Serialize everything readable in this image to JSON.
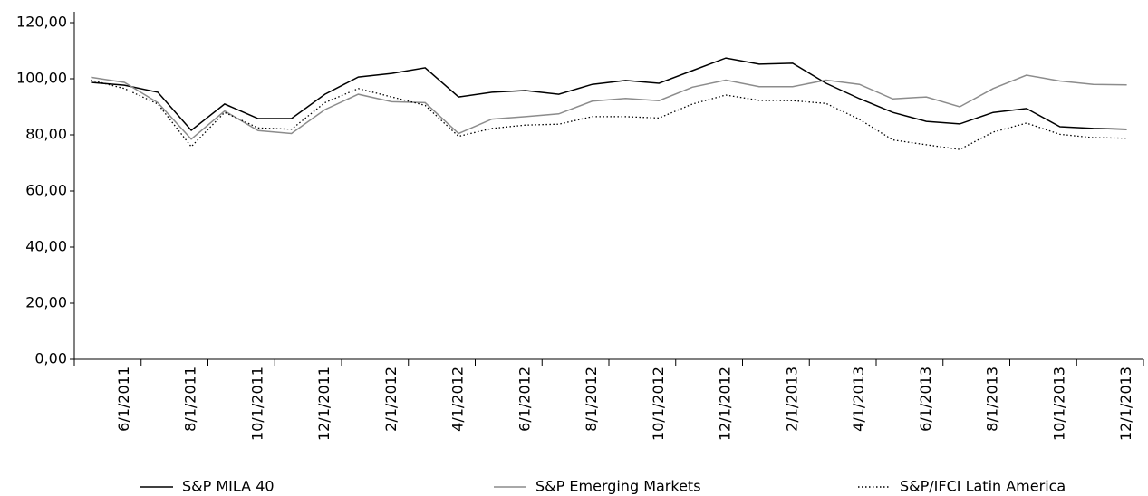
{
  "chart_data": {
    "type": "line",
    "categories": [
      null,
      "6/1/2011",
      null,
      "8/1/2011",
      null,
      "10/1/2011",
      null,
      "12/1/2011",
      null,
      "2/1/2012",
      null,
      "4/1/2012",
      null,
      "6/1/2012",
      null,
      "8/1/2012",
      null,
      "10/1/2012",
      null,
      "12/1/2012",
      null,
      "2/1/2013",
      null,
      "4/1/2013",
      null,
      "6/1/2013",
      null,
      "8/1/2013",
      null,
      "10/1/2013",
      null,
      "12/1/2013"
    ],
    "series": [
      {
        "name": "S&P MILA 40",
        "color": "#000000",
        "dash": "solid",
        "values": [
          98.7,
          97.7,
          95.2,
          81.6,
          91,
          85.8,
          85.8,
          94.5,
          100.6,
          101.9,
          103.9,
          93.5,
          95.2,
          95.8,
          94.5,
          98,
          99.4,
          98.4,
          102.9,
          107.4,
          105.2,
          105.5,
          98.4,
          92.9,
          88,
          84.8,
          83.9,
          88,
          89.4,
          82.9,
          82.3,
          82
        ]
      },
      {
        "name": "S&P Emerging Markets",
        "color": "#8c8c8c",
        "dash": "solid",
        "values": [
          100.5,
          98.7,
          91.5,
          78.5,
          88.5,
          81.5,
          80.5,
          89,
          94.5,
          91.8,
          91.5,
          80.5,
          85.6,
          86.5,
          87.5,
          92,
          93,
          92.2,
          97,
          99.5,
          97.2,
          97.2,
          99.5,
          98,
          92.8,
          93.5,
          90,
          96.5,
          101.3,
          99.2,
          98,
          97.8
        ]
      },
      {
        "name": "S&P/IFCI Latin America",
        "color": "#000000",
        "dash": "dotted",
        "values": [
          99.5,
          96.5,
          91,
          75.8,
          88,
          82.5,
          82,
          91.5,
          96.5,
          93.5,
          90.5,
          79.5,
          82.3,
          83.5,
          83.8,
          86.5,
          86.5,
          86,
          91,
          94.2,
          92.3,
          92.2,
          91.2,
          85.5,
          78.2,
          76.5,
          74.8,
          81,
          84.2,
          80.2,
          79,
          78.8
        ]
      }
    ],
    "ylim": [
      0,
      120
    ],
    "yticks": [
      {
        "value": 0,
        "label": "0,00"
      },
      {
        "value": 20,
        "label": "20,00"
      },
      {
        "value": 40,
        "label": "40,00"
      },
      {
        "value": 60,
        "label": "60,00"
      },
      {
        "value": 80,
        "label": "80,00"
      },
      {
        "value": 100,
        "label": "100,00"
      },
      {
        "value": 120,
        "label": "120,00"
      }
    ],
    "grid": false
  }
}
